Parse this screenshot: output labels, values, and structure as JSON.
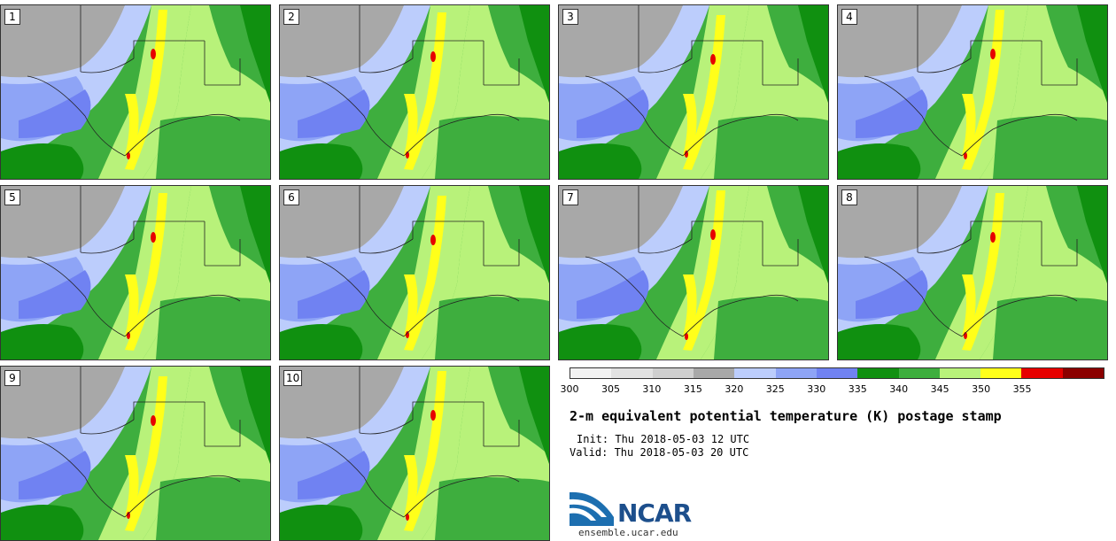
{
  "panels": [
    {
      "label": "1"
    },
    {
      "label": "2"
    },
    {
      "label": "3"
    },
    {
      "label": "4"
    },
    {
      "label": "5"
    },
    {
      "label": "6"
    },
    {
      "label": "7"
    },
    {
      "label": "8"
    },
    {
      "label": "9"
    },
    {
      "label": "10"
    }
  ],
  "colorbar": {
    "ticks": [
      "300",
      "305",
      "310",
      "315",
      "320",
      "325",
      "330",
      "335",
      "340",
      "345",
      "350",
      "355"
    ],
    "colors": [
      "#f2f2f2",
      "#e2e2e2",
      "#cfcfcf",
      "#a8a8a8",
      "#bccdfc",
      "#8ea4f6",
      "#7082f2",
      "#109010",
      "#3eae3e",
      "#b8f27a",
      "#ffff1a",
      "#e60000",
      "#8b0000"
    ]
  },
  "title": "2-m equivalent potential temperature (K) postage stamp",
  "init": "Init: Thu 2018-05-03 12 UTC",
  "valid": "Valid: Thu 2018-05-03 20 UTC",
  "logo": {
    "text": "NCAR",
    "color": "#1d4f8c"
  },
  "site": "ensemble.ucar.edu"
}
